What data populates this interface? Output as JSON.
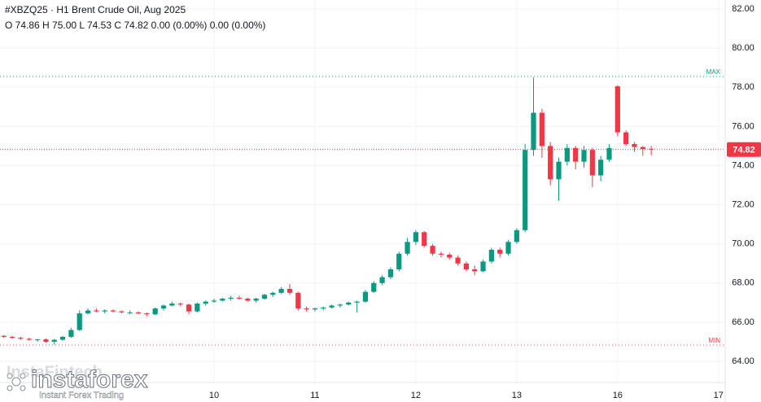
{
  "chart_data": {
    "type": "candlestick",
    "title": "#XBZQ25 · H1 Brent Crude Oil, Aug 2025",
    "subtitle": "O 74.86 H 75.00 L 74.53 C 74.82 0.00 (0.00%) 0.00 (0.00%)",
    "up_color": "#089981",
    "down_color": "#f23645",
    "xlim": [
      -0.46,
      85.7
    ],
    "ylim": [
      62.92,
      82.46
    ],
    "grid": true,
    "xticks": [
      {
        "value": 25,
        "label": "10"
      },
      {
        "value": 37,
        "label": "11"
      },
      {
        "value": 49,
        "label": "12"
      },
      {
        "value": 61,
        "label": "13"
      },
      {
        "value": 73,
        "label": "16"
      },
      {
        "value": 85,
        "label": "17"
      }
    ],
    "yticks": [
      {
        "value": 64,
        "label": "64.00"
      },
      {
        "value": 66,
        "label": "66.00"
      },
      {
        "value": 68,
        "label": "68.00"
      },
      {
        "value": 70,
        "label": "70.00"
      },
      {
        "value": 72,
        "label": "72.00"
      },
      {
        "value": 74,
        "label": "74.00"
      },
      {
        "value": 76,
        "label": "76.00"
      },
      {
        "value": 78,
        "label": "78.00"
      },
      {
        "value": 80,
        "label": "80.00"
      },
      {
        "value": 82,
        "label": "82.00"
      }
    ],
    "max_line": {
      "value": 78.55,
      "label": "MAX"
    },
    "min_line": {
      "value": 64.83,
      "label": "MIN"
    },
    "last_price": 74.82,
    "open": [
      65.3,
      65.25,
      65.2,
      65.15,
      65.1,
      65.12,
      65.0,
      65.1,
      65.25,
      65.6,
      66.45,
      66.6,
      66.55,
      66.6,
      66.55,
      66.5,
      66.5,
      66.45,
      66.4,
      66.7,
      66.85,
      66.95,
      66.9,
      66.55,
      66.95,
      67.05,
      67.1,
      67.2,
      67.25,
      67.2,
      67.1,
      67.2,
      67.4,
      67.5,
      67.7,
      67.5,
      66.7,
      66.65,
      66.7,
      66.75,
      66.85,
      66.9,
      67.0,
      67.05,
      67.55,
      68.0,
      68.3,
      68.7,
      69.5,
      70.1,
      70.6,
      69.9,
      69.5,
      69.45,
      69.3,
      69.0,
      68.7,
      68.6,
      69.1,
      69.7,
      69.5,
      70.1,
      70.7,
      74.8,
      76.7,
      75.0,
      73.3,
      74.2,
      74.9,
      74.2,
      74.8,
      73.5,
      74.3,
      78.05,
      75.7,
      75.1,
      74.95,
      74.86
    ],
    "high": [
      65.35,
      65.3,
      65.25,
      65.2,
      65.15,
      65.18,
      65.15,
      65.3,
      65.7,
      66.6,
      66.7,
      66.7,
      66.65,
      66.65,
      66.6,
      66.6,
      66.55,
      66.5,
      66.75,
      66.9,
      67.05,
      67.0,
      66.95,
      67.0,
      67.1,
      67.2,
      67.25,
      67.35,
      67.35,
      67.25,
      67.25,
      67.45,
      67.55,
      67.8,
      67.95,
      67.55,
      66.8,
      66.75,
      66.8,
      66.9,
      66.95,
      67.05,
      67.1,
      67.65,
      68.1,
      68.4,
      68.8,
      69.6,
      70.3,
      70.7,
      70.65,
      70.0,
      69.6,
      69.55,
      69.4,
      69.1,
      68.9,
      69.2,
      69.8,
      69.8,
      70.2,
      70.8,
      75.1,
      78.5,
      76.9,
      75.2,
      74.4,
      75.1,
      75.0,
      75.0,
      74.9,
      74.5,
      75.1,
      78.1,
      75.8,
      75.2,
      75.0,
      75.0
    ],
    "low": [
      65.2,
      65.15,
      65.1,
      65.05,
      65.0,
      64.95,
      64.85,
      65.05,
      65.2,
      65.55,
      66.4,
      66.5,
      66.45,
      66.5,
      66.45,
      66.4,
      66.4,
      66.3,
      66.35,
      66.6,
      66.8,
      66.8,
      66.4,
      66.5,
      66.85,
      67.0,
      67.05,
      67.1,
      67.15,
      67.05,
      67.0,
      67.15,
      67.3,
      67.45,
      67.4,
      66.6,
      66.55,
      66.55,
      66.6,
      66.7,
      66.75,
      66.85,
      66.5,
      67.0,
      67.5,
      67.9,
      68.2,
      68.6,
      69.4,
      69.95,
      69.8,
      69.4,
      69.3,
      69.2,
      68.9,
      68.6,
      68.4,
      68.55,
      69.0,
      69.3,
      69.4,
      70.0,
      70.6,
      74.5,
      74.4,
      73.0,
      72.2,
      74.0,
      73.8,
      73.9,
      72.9,
      73.2,
      74.2,
      75.5,
      75.0,
      74.7,
      74.5,
      74.53
    ],
    "close": [
      65.25,
      65.2,
      65.15,
      65.1,
      65.12,
      65.0,
      65.1,
      65.25,
      65.6,
      66.45,
      66.6,
      66.55,
      66.6,
      66.55,
      66.5,
      66.5,
      66.45,
      66.4,
      66.7,
      66.85,
      66.95,
      66.9,
      66.55,
      66.95,
      67.05,
      67.1,
      67.2,
      67.25,
      67.2,
      67.1,
      67.2,
      67.4,
      67.5,
      67.7,
      67.5,
      66.7,
      66.65,
      66.7,
      66.75,
      66.85,
      66.9,
      67.0,
      67.05,
      67.55,
      68.0,
      68.3,
      68.7,
      69.5,
      70.1,
      70.6,
      69.9,
      69.5,
      69.45,
      69.3,
      69.0,
      68.7,
      68.6,
      69.1,
      69.7,
      69.5,
      70.1,
      70.7,
      74.8,
      76.7,
      75.0,
      73.3,
      74.2,
      74.9,
      74.2,
      74.8,
      73.5,
      74.3,
      74.9,
      75.7,
      75.1,
      74.95,
      74.85,
      74.82
    ]
  },
  "watermark": {
    "brand": "instaforex",
    "tagline": "Instant Forex Trading",
    "faint": "InstaFintech"
  }
}
